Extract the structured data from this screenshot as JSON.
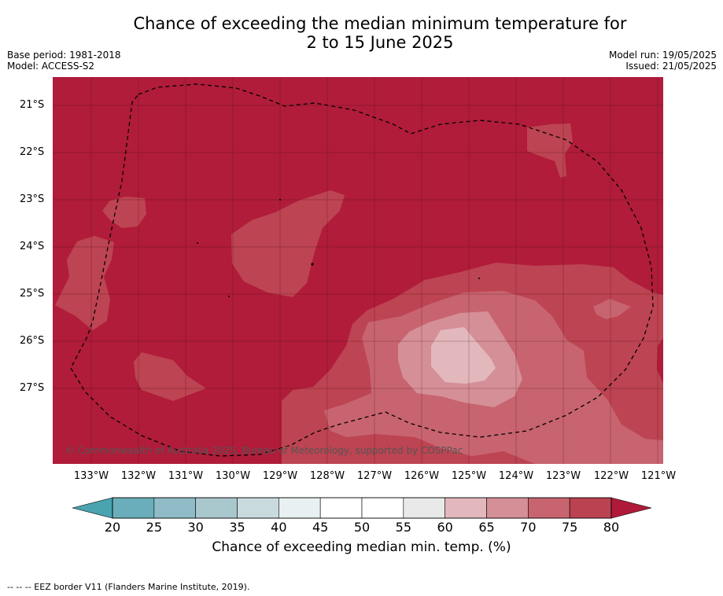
{
  "title": {
    "line1": "Chance of exceeding the median minimum temperature for",
    "line2": "2 to 15 June 2025"
  },
  "meta_left": {
    "base_period": "Base period: 1981-2018",
    "model": "Model: ACCESS-S2"
  },
  "meta_right": {
    "model_run": "Model run: 19/05/2025",
    "issued": "Issued: 21/05/2025"
  },
  "map": {
    "lat_labels": [
      "21°S",
      "22°S",
      "23°S",
      "24°S",
      "25°S",
      "26°S",
      "27°S"
    ],
    "lon_labels": [
      "133°W",
      "132°W",
      "131°W",
      "130°W",
      "129°W",
      "128°W",
      "127°W",
      "126°W",
      "125°W",
      "124°W",
      "123°W",
      "122°W",
      "121°W"
    ],
    "copyright": "© Commonwealth of Australia 2025, Bureau of Meteorology, supported by COSPPac"
  },
  "colorbar": {
    "ticks": [
      "20",
      "25",
      "30",
      "35",
      "40",
      "45",
      "50",
      "55",
      "60",
      "65",
      "70",
      "75",
      "80"
    ],
    "colors": [
      "#6aaebb",
      "#8fbcc6",
      "#a9c8ce",
      "#c9dade",
      "#e9f0f2",
      "#ffffff",
      "#ffffff",
      "#e9e9e9",
      "#e2b8bd",
      "#d58f97",
      "#c8646f",
      "#bb4251"
    ],
    "under_color": "#4aa3b0",
    "over_color": "#b01a3a",
    "label": "Chance of exceeding median min. temp. (%)"
  },
  "footnote": "--  --  -- EEZ border V11 (Flanders Marine Institute, 2019)."
}
